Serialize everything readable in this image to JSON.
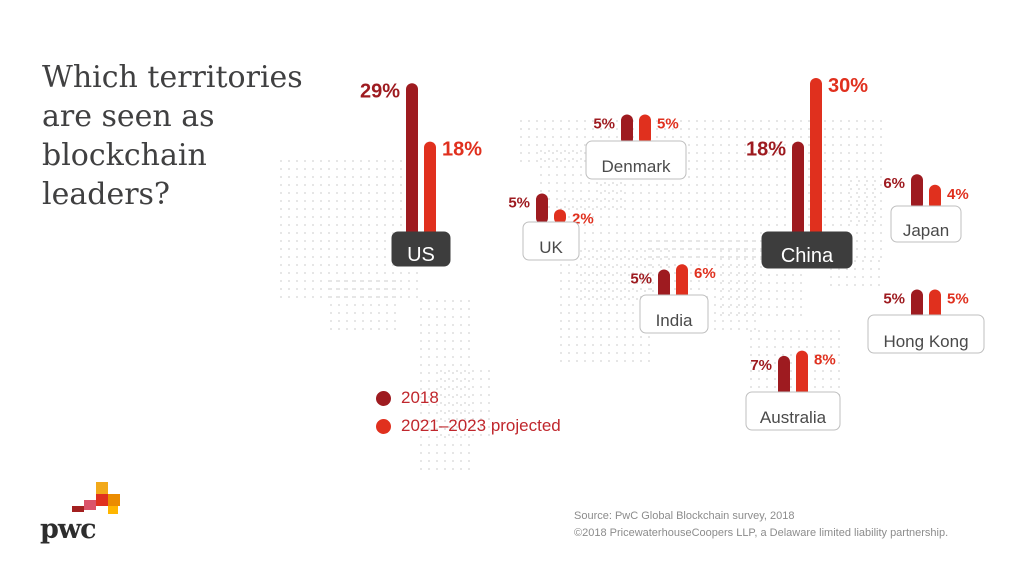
{
  "title": "Which territories are seen as blockchain leaders?",
  "legend": {
    "series_2018": "2018",
    "series_projected": "2021–2023 projected"
  },
  "source": {
    "line1": "Source: PwC Global Blockchain survey, 2018",
    "line2": "©2018 PricewaterhouseCoopers LLP, a Delaware limited liability partnership."
  },
  "logo": {
    "text": "pwc"
  },
  "colors": {
    "series_2018": "#9e1b20",
    "series_projected": "#e0301e",
    "label_dark_bg": "#3d3d3d",
    "map_dots": "#e6e6e6"
  },
  "chart_data": {
    "type": "bar",
    "series": [
      {
        "name": "2018",
        "values": [
          29,
          5,
          5,
          5,
          18,
          6,
          5,
          7
        ]
      },
      {
        "name": "2021–2023 projected",
        "values": [
          18,
          2,
          5,
          6,
          30,
          4,
          5,
          8
        ]
      }
    ],
    "categories": [
      "US",
      "UK",
      "Denmark",
      "India",
      "China",
      "Japan",
      "Hong Kong",
      "Australia"
    ],
    "value_labels": [
      [
        "29%",
        "5%",
        "5%",
        "5%",
        "18%",
        "6%",
        "5%",
        "7%"
      ],
      [
        "18%",
        "2%",
        "5%",
        "6%",
        "30%",
        "4%",
        "5%",
        "8%"
      ]
    ],
    "highlighted": [
      "US",
      "China"
    ],
    "legend_position": "bottom-left"
  }
}
